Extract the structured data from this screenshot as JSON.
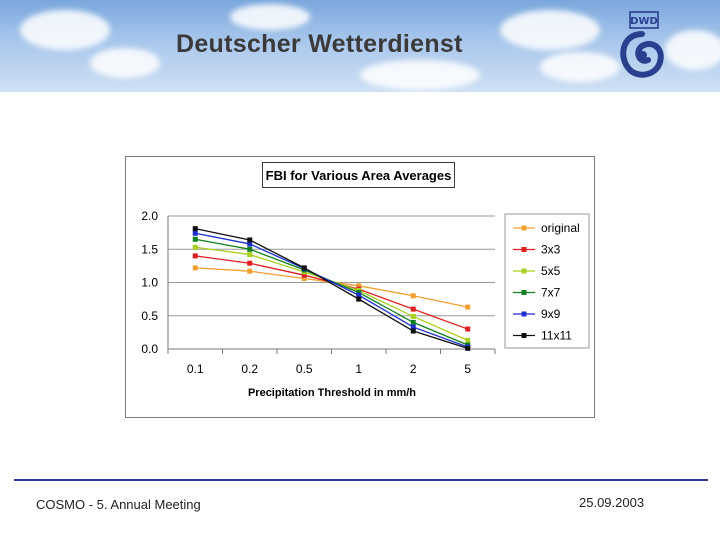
{
  "header": {
    "title": "Deutscher Wetterdienst",
    "logo_text": "DWD"
  },
  "footer": {
    "left": "COSMO - 5. Annual Meeting",
    "right": "25.09.2003"
  },
  "chart_data": {
    "type": "line",
    "title": "FBI for Various Area Averages",
    "xlabel": "Precipitation Threshold in mm/h",
    "ylabel": "",
    "categories": [
      "0.1",
      "0.2",
      "0.5",
      "1",
      "2",
      "5"
    ],
    "ylim": [
      0,
      2.0
    ],
    "yticks": [
      "0.0",
      "0.5",
      "1.0",
      "1.5",
      "2.0"
    ],
    "grid": true,
    "legend": "right",
    "series": [
      {
        "name": "original",
        "color": "#f0a030",
        "values": [
          1.22,
          1.17,
          1.06,
          0.95,
          0.8,
          0.63
        ]
      },
      {
        "name": "3x3",
        "color": "#e02020",
        "values": [
          1.4,
          1.29,
          1.11,
          0.9,
          0.6,
          0.3
        ]
      },
      {
        "name": "5x5",
        "color": "#a8d020",
        "values": [
          1.53,
          1.42,
          1.16,
          0.88,
          0.49,
          0.13
        ]
      },
      {
        "name": "7x7",
        "color": "#108020",
        "values": [
          1.65,
          1.5,
          1.19,
          0.85,
          0.4,
          0.06
        ]
      },
      {
        "name": "9x9",
        "color": "#1c2fd0",
        "values": [
          1.74,
          1.58,
          1.21,
          0.81,
          0.33,
          0.03
        ]
      },
      {
        "name": "11x11",
        "color": "#101010",
        "values": [
          1.81,
          1.64,
          1.22,
          0.75,
          0.27,
          0.01
        ]
      }
    ]
  }
}
